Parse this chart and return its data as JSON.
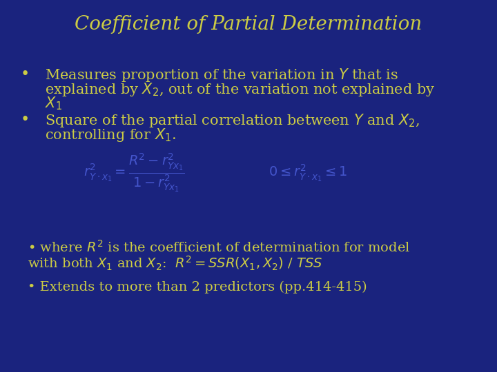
{
  "background_color": "#1a237e",
  "title": "Coefficient of Partial Determination",
  "title_color": "#cccc44",
  "title_fontsize": 20,
  "text_color": "#cccc44",
  "formula_color": "#4455cc",
  "bullet1_line1": "Measures proportion of the variation in $Y$ that is",
  "bullet1_line2": "explained by $X_2$, out of the variation not explained by",
  "bullet1_line3": "$X_1$",
  "bullet2_line1": "Square of the partial correlation between $Y$ and $X_2$,",
  "bullet2_line2": "controlling for $X_1$.",
  "note1_line1": "• where $R^2$ is the coefficient of determination for model",
  "note1_line2": "with both $X_1$ and $X_2$:  $R^2 = SSR(X_1,X_2)$ / $TSS$",
  "note2": "• Extends to more than 2 predictors (pp.414-415)",
  "body_fontsize": 15,
  "note_fontsize": 14
}
